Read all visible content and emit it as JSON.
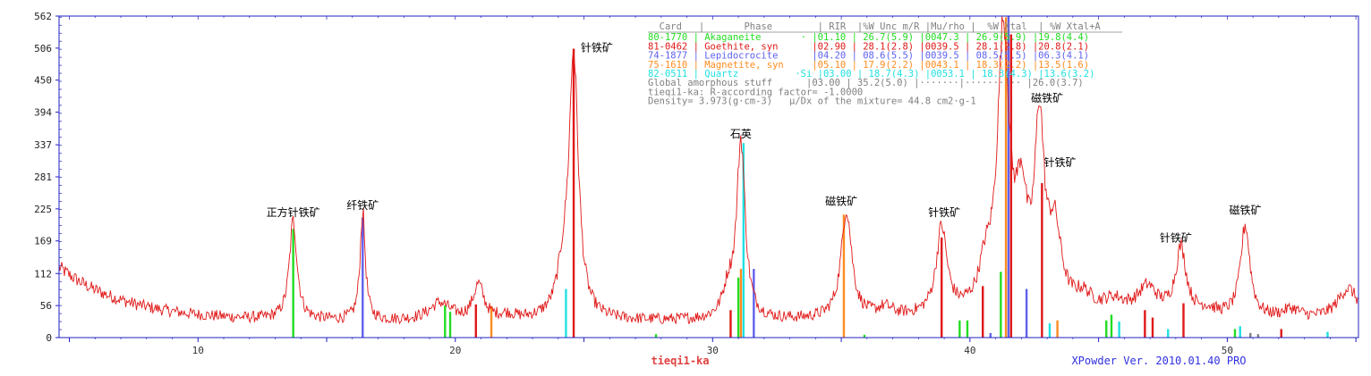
{
  "chart_data": {
    "type": "line",
    "title": "",
    "xlabel": "",
    "ylabel": "",
    "xlim": [
      4.6,
      55.1
    ],
    "ylim": [
      0,
      562
    ],
    "yticks": [
      0,
      56,
      112,
      169,
      225,
      281,
      337,
      394,
      450,
      506,
      562
    ],
    "xticks": [
      10,
      20,
      30,
      40,
      50
    ],
    "pattern_name": "tieqi1-ka",
    "software": "XPowder Ver. 2010.01.40 PRO",
    "colors": {
      "profile": "#e01818",
      "axis": "#2020c0",
      "Akaganeite": "#22dd22",
      "Goethite": "#e01818",
      "Lepidocrocite": "#6060ee",
      "Magnetite": "#ff8c20",
      "Quartz": "#20e0e0",
      "Other": "#808080"
    },
    "peaks": [
      {
        "x": 13.7,
        "h": 172,
        "w": 0.18
      },
      {
        "x": 16.4,
        "h": 190,
        "w": 0.12
      },
      {
        "x": 19.4,
        "h": 30,
        "w": 0.5
      },
      {
        "x": 20.9,
        "h": 60,
        "w": 0.25
      },
      {
        "x": 22.0,
        "h": 8,
        "w": 0.4
      },
      {
        "x": 24.6,
        "h": 455,
        "w": 0.22
      },
      {
        "x": 24.2,
        "h": 60,
        "w": 0.3
      },
      {
        "x": 31.1,
        "h": 310,
        "w": 0.2
      },
      {
        "x": 30.6,
        "h": 45,
        "w": 0.25
      },
      {
        "x": 35.2,
        "h": 190,
        "w": 0.25
      },
      {
        "x": 36.7,
        "h": 15,
        "w": 0.35
      },
      {
        "x": 38.9,
        "h": 150,
        "w": 0.25
      },
      {
        "x": 40.6,
        "h": 60,
        "w": 0.3
      },
      {
        "x": 41.3,
        "h": 480,
        "w": 0.28
      },
      {
        "x": 42.0,
        "h": 170,
        "w": 0.25
      },
      {
        "x": 42.7,
        "h": 315,
        "w": 0.22
      },
      {
        "x": 43.3,
        "h": 130,
        "w": 0.3
      },
      {
        "x": 44.4,
        "h": 25,
        "w": 0.4
      },
      {
        "x": 45.6,
        "h": 20,
        "w": 0.5
      },
      {
        "x": 46.9,
        "h": 45,
        "w": 0.45
      },
      {
        "x": 48.2,
        "h": 115,
        "w": 0.25
      },
      {
        "x": 49.2,
        "h": 10,
        "w": 0.4
      },
      {
        "x": 50.7,
        "h": 160,
        "w": 0.22
      },
      {
        "x": 52.5,
        "h": 15,
        "w": 0.4
      },
      {
        "x": 54.7,
        "h": 55,
        "w": 0.5
      }
    ],
    "sticks": [
      {
        "x": 13.7,
        "h": 190,
        "phase": "Akaganeite"
      },
      {
        "x": 16.4,
        "h": 210,
        "phase": "Lepidocrocite"
      },
      {
        "x": 19.6,
        "h": 56,
        "phase": "Akaganeite"
      },
      {
        "x": 19.8,
        "h": 45,
        "phase": "Akaganeite"
      },
      {
        "x": 20.8,
        "h": 58,
        "phase": "Goethite"
      },
      {
        "x": 21.4,
        "h": 55,
        "phase": "Magnetite"
      },
      {
        "x": 24.3,
        "h": 85,
        "phase": "Quartz"
      },
      {
        "x": 24.6,
        "h": 505,
        "phase": "Goethite"
      },
      {
        "x": 27.8,
        "h": 6,
        "phase": "Akaganeite"
      },
      {
        "x": 30.7,
        "h": 48,
        "phase": "Goethite"
      },
      {
        "x": 31.0,
        "h": 105,
        "phase": "Akaganeite"
      },
      {
        "x": 31.1,
        "h": 120,
        "phase": "Magnetite"
      },
      {
        "x": 31.2,
        "h": 340,
        "phase": "Quartz"
      },
      {
        "x": 31.6,
        "h": 120,
        "phase": "Lepidocrocite"
      },
      {
        "x": 35.1,
        "h": 215,
        "phase": "Magnetite"
      },
      {
        "x": 35.9,
        "h": 5,
        "phase": "Akaganeite"
      },
      {
        "x": 38.9,
        "h": 175,
        "phase": "Goethite"
      },
      {
        "x": 39.6,
        "h": 30,
        "phase": "Akaganeite"
      },
      {
        "x": 39.9,
        "h": 30,
        "phase": "Akaganeite"
      },
      {
        "x": 40.5,
        "h": 90,
        "phase": "Goethite"
      },
      {
        "x": 40.8,
        "h": 8,
        "phase": "Lepidocrocite"
      },
      {
        "x": 41.2,
        "h": 115,
        "phase": "Akaganeite"
      },
      {
        "x": 41.4,
        "h": 560,
        "phase": "Magnetite"
      },
      {
        "x": 41.5,
        "h": 562,
        "phase": "Lepidocrocite"
      },
      {
        "x": 41.6,
        "h": 530,
        "phase": "Goethite"
      },
      {
        "x": 42.2,
        "h": 85,
        "phase": "Lepidocrocite"
      },
      {
        "x": 42.8,
        "h": 270,
        "phase": "Goethite"
      },
      {
        "x": 43.1,
        "h": 25,
        "phase": "Quartz"
      },
      {
        "x": 43.4,
        "h": 30,
        "phase": "Magnetite"
      },
      {
        "x": 45.3,
        "h": 30,
        "phase": "Akaganeite"
      },
      {
        "x": 45.5,
        "h": 40,
        "phase": "Akaganeite"
      },
      {
        "x": 45.8,
        "h": 28,
        "phase": "Quartz"
      },
      {
        "x": 46.8,
        "h": 48,
        "phase": "Goethite"
      },
      {
        "x": 47.1,
        "h": 35,
        "phase": "Goethite"
      },
      {
        "x": 47.7,
        "h": 15,
        "phase": "Quartz"
      },
      {
        "x": 48.3,
        "h": 60,
        "phase": "Goethite"
      },
      {
        "x": 50.3,
        "h": 15,
        "phase": "Akaganeite"
      },
      {
        "x": 50.5,
        "h": 20,
        "phase": "Quartz"
      },
      {
        "x": 50.9,
        "h": 8,
        "phase": "Other"
      },
      {
        "x": 51.2,
        "h": 6,
        "phase": "Other"
      },
      {
        "x": 52.1,
        "h": 15,
        "phase": "Goethite"
      },
      {
        "x": 53.9,
        "h": 10,
        "phase": "Quartz"
      }
    ],
    "annotations": [
      {
        "text": "正方针铁矿",
        "x": 13.7,
        "y": 212
      },
      {
        "text": "纤铁矿",
        "x": 16.4,
        "y": 225
      },
      {
        "text": "针铁矿",
        "x": 25.5,
        "y": 500
      },
      {
        "text": "石英",
        "x": 31.1,
        "y": 350
      },
      {
        "text": "磁铁矿",
        "x": 35.0,
        "y": 232
      },
      {
        "text": "针铁矿",
        "x": 39.0,
        "y": 212
      },
      {
        "text": "磁铁矿",
        "x": 43.0,
        "y": 412
      },
      {
        "text": "针铁矿",
        "x": 43.5,
        "y": 300
      },
      {
        "text": "针铁矿",
        "x": 48.0,
        "y": 168
      },
      {
        "text": "磁铁矿",
        "x": 50.7,
        "y": 216
      }
    ],
    "legend": {
      "placement": "top-center",
      "header": "  Card   |       Phase        | RIR  |%W Unc m/R |Mu/rho |  %W Xtal  | %W Xtal+A",
      "rows": [
        {
          "text": "80-1770 | Akaganeite       · |01.10 | 26.7(5.9) |0047.3 | 26.9(5.9) |19.8(4.4)",
          "phase": "Akaganeite"
        },
        {
          "text": "81-0462 | Goethite, syn      |02.90 | 28.1(2.8) |0039.5 | 28.1(2.8) |20.8(2.1)",
          "phase": "Goethite"
        },
        {
          "text": "74-1877 | Lepidocrocite      |04.20 | 08.6(5.5) |0039.5 | 08.5(5.5) |06.3(4.1)",
          "phase": "Lepidocrocite"
        },
        {
          "text": "75-1610 | Magnetite, syn     |05.10 | 17.9(2.2) |0043.1 | 18.3(2.2) |13.5(1.6)",
          "phase": "Magnetite"
        },
        {
          "text": "82-0511 | Quartz          ·Si |03.00 | 18.7(4.3) |0053.1 | 18.3(4.3) |13.6(3.2)",
          "phase": "Quartz"
        }
      ],
      "extra": [
        "Global amorphous stuff      |03.00 | 35.2(5.0) |·······|·········· |26.0(3.7)",
        "tieqi1-ka: R-according factor= -1.0000",
        "Density= 3.973(g·cm-3)   μ/Dx of the mixture= 44.8 cm2·g-1"
      ]
    }
  }
}
